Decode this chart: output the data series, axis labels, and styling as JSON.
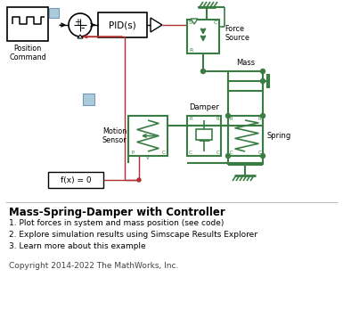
{
  "title": "Mass-Spring-Damper with Controller",
  "bullets": [
    "1. Plot forces in system and mass position (see code)",
    "2. Explore simulation results using Simscape Results Explorer",
    "3. Learn more about this example"
  ],
  "copyright": "Copyright 2014-2022 The MathWorks, Inc.",
  "bg_color": "#ffffff",
  "green": "#3a7d44",
  "black": "#000000",
  "red": "#b03030",
  "blue_light": "#aaccdd",
  "blue_edge": "#7799bb"
}
